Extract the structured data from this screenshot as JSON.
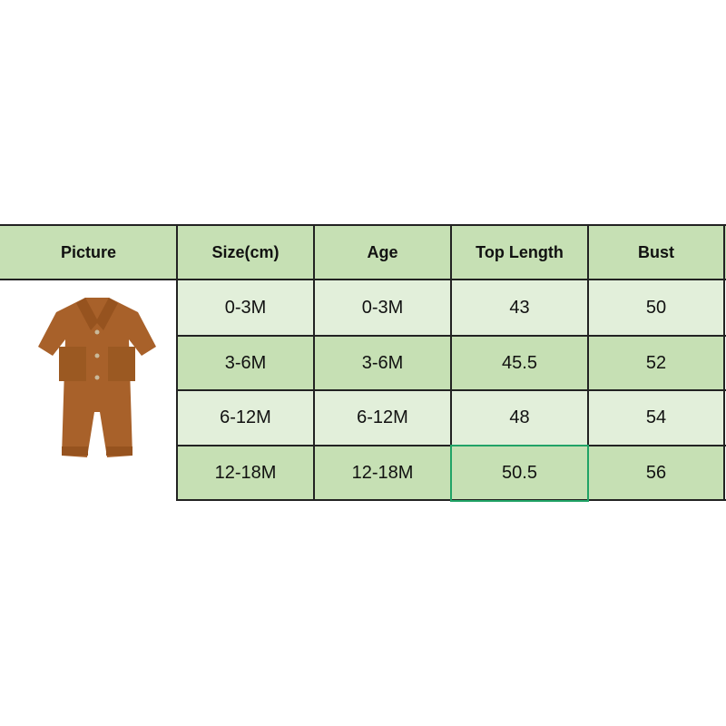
{
  "table": {
    "headers": [
      "Picture",
      "Size(cm)",
      "Age",
      "Top Length",
      "Bust"
    ],
    "rows": [
      [
        "0-3M",
        "0-3M",
        "43",
        "50"
      ],
      [
        "3-6M",
        "3-6M",
        "45.5",
        "52"
      ],
      [
        "6-12M",
        "6-12M",
        "48",
        "54"
      ],
      [
        "12-18M",
        "12-18M",
        "50.5",
        "56"
      ]
    ],
    "selected_cell": {
      "row": 3,
      "column": "Top Length"
    }
  },
  "colors": {
    "header": "#c6e0b4",
    "row_light": "#e2efda",
    "row_dark": "#c6e0b4",
    "selection": "#21a366",
    "garment": "#a8612a"
  }
}
